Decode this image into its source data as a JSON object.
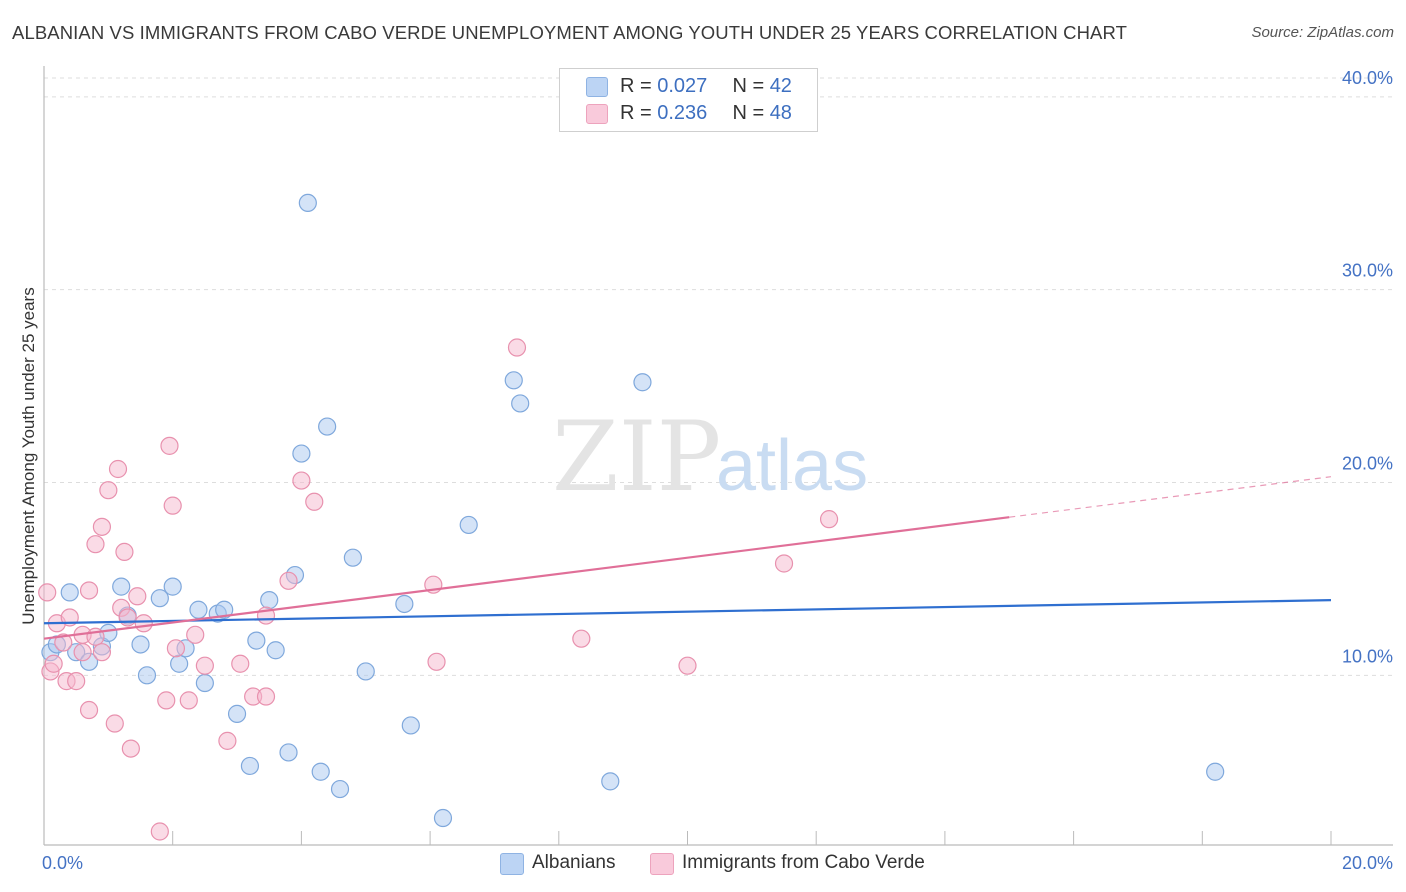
{
  "chart_data": {
    "type": "scatter",
    "title": "ALBANIAN VS IMMIGRANTS FROM CABO VERDE UNEMPLOYMENT AMONG YOUTH UNDER 25 YEARS CORRELATION CHART",
    "source": "Source: ZipAtlas.com",
    "ylabel": "Unemployment Among Youth under 25 years",
    "xlabel": "",
    "xlim": [
      0,
      20
    ],
    "ylim": [
      1.2,
      41.6
    ],
    "x_tick_labels": [
      "0.0%",
      "20.0%"
    ],
    "y_ticks": [
      {
        "value": 10,
        "label": "10.0%"
      },
      {
        "value": 20,
        "label": "20.0%"
      },
      {
        "value": 30,
        "label": "30.0%"
      },
      {
        "value": 40,
        "label": "40.0%"
      }
    ],
    "grid": true,
    "watermark": {
      "zip": "ZIP",
      "atlas": "atlas"
    },
    "legend": {
      "position": "top-center",
      "entries": [
        {
          "r_label": "R =",
          "r_value": "0.027",
          "n_label": "N =",
          "n_value": "42",
          "color": "#a9c8f0"
        },
        {
          "r_label": "R =",
          "r_value": "0.236",
          "n_label": "N =",
          "n_value": "48",
          "color": "#f6b8cd"
        }
      ]
    },
    "series": [
      {
        "name": "Albanians",
        "color": "#a9c8f0",
        "stroke": "#7fa8dc",
        "trend_color": "#2f6fd0",
        "trend": {
          "x": [
            0,
            20
          ],
          "y": [
            12.7,
            13.9
          ],
          "dashed_from": null
        },
        "points": [
          [
            0.1,
            11.2
          ],
          [
            0.2,
            11.6
          ],
          [
            0.4,
            14.3
          ],
          [
            0.5,
            11.2
          ],
          [
            0.7,
            10.7
          ],
          [
            0.9,
            11.5
          ],
          [
            1.0,
            12.2
          ],
          [
            1.2,
            14.6
          ],
          [
            1.3,
            13.1
          ],
          [
            1.5,
            11.6
          ],
          [
            1.6,
            10.0
          ],
          [
            1.8,
            14.0
          ],
          [
            2.0,
            14.6
          ],
          [
            2.1,
            10.6
          ],
          [
            2.2,
            11.4
          ],
          [
            2.4,
            13.4
          ],
          [
            2.5,
            9.6
          ],
          [
            2.7,
            13.2
          ],
          [
            2.8,
            13.4
          ],
          [
            3.0,
            8.0
          ],
          [
            3.2,
            5.3
          ],
          [
            3.3,
            11.8
          ],
          [
            3.5,
            13.9
          ],
          [
            3.6,
            11.3
          ],
          [
            3.8,
            6.0
          ],
          [
            3.9,
            15.2
          ],
          [
            4.0,
            21.5
          ],
          [
            4.1,
            34.5
          ],
          [
            4.3,
            5.0
          ],
          [
            4.4,
            22.9
          ],
          [
            4.6,
            4.1
          ],
          [
            4.8,
            16.1
          ],
          [
            5.0,
            10.2
          ],
          [
            5.6,
            13.7
          ],
          [
            5.7,
            7.4
          ],
          [
            6.2,
            2.6
          ],
          [
            6.6,
            17.8
          ],
          [
            7.3,
            25.3
          ],
          [
            7.4,
            24.1
          ],
          [
            8.8,
            4.5
          ],
          [
            9.3,
            25.2
          ],
          [
            18.2,
            5.0
          ]
        ]
      },
      {
        "name": "Immigrants from Cabo Verde",
        "color": "#f6b8cd",
        "stroke": "#e891ae",
        "trend_color": "#e06f98",
        "trend": {
          "x": [
            0,
            20
          ],
          "y": [
            11.9,
            20.3
          ],
          "dashed_from": 15.0
        },
        "points": [
          [
            0.05,
            14.3
          ],
          [
            0.1,
            10.2
          ],
          [
            0.15,
            10.6
          ],
          [
            0.2,
            12.7
          ],
          [
            0.3,
            11.7
          ],
          [
            0.35,
            9.7
          ],
          [
            0.4,
            13.0
          ],
          [
            0.5,
            9.7
          ],
          [
            0.6,
            11.2
          ],
          [
            0.6,
            12.1
          ],
          [
            0.7,
            14.4
          ],
          [
            0.7,
            8.2
          ],
          [
            0.8,
            12.0
          ],
          [
            0.8,
            16.8
          ],
          [
            0.9,
            11.2
          ],
          [
            0.9,
            17.7
          ],
          [
            1.0,
            19.6
          ],
          [
            1.1,
            7.5
          ],
          [
            1.15,
            20.7
          ],
          [
            1.2,
            13.5
          ],
          [
            1.25,
            16.4
          ],
          [
            1.3,
            13.0
          ],
          [
            1.35,
            6.2
          ],
          [
            1.45,
            14.1
          ],
          [
            1.55,
            12.7
          ],
          [
            1.8,
            1.9
          ],
          [
            1.9,
            8.7
          ],
          [
            1.95,
            21.9
          ],
          [
            2.0,
            18.8
          ],
          [
            2.05,
            11.4
          ],
          [
            2.25,
            8.7
          ],
          [
            2.35,
            12.1
          ],
          [
            2.5,
            10.5
          ],
          [
            2.85,
            6.6
          ],
          [
            3.05,
            10.6
          ],
          [
            3.25,
            8.9
          ],
          [
            3.45,
            8.9
          ],
          [
            3.45,
            13.1
          ],
          [
            3.8,
            14.9
          ],
          [
            4.0,
            20.1
          ],
          [
            4.2,
            19.0
          ],
          [
            6.05,
            14.7
          ],
          [
            6.1,
            10.7
          ],
          [
            7.35,
            27.0
          ],
          [
            8.35,
            11.9
          ],
          [
            10.0,
            10.5
          ],
          [
            11.5,
            15.8
          ],
          [
            12.2,
            18.1
          ]
        ]
      }
    ]
  }
}
